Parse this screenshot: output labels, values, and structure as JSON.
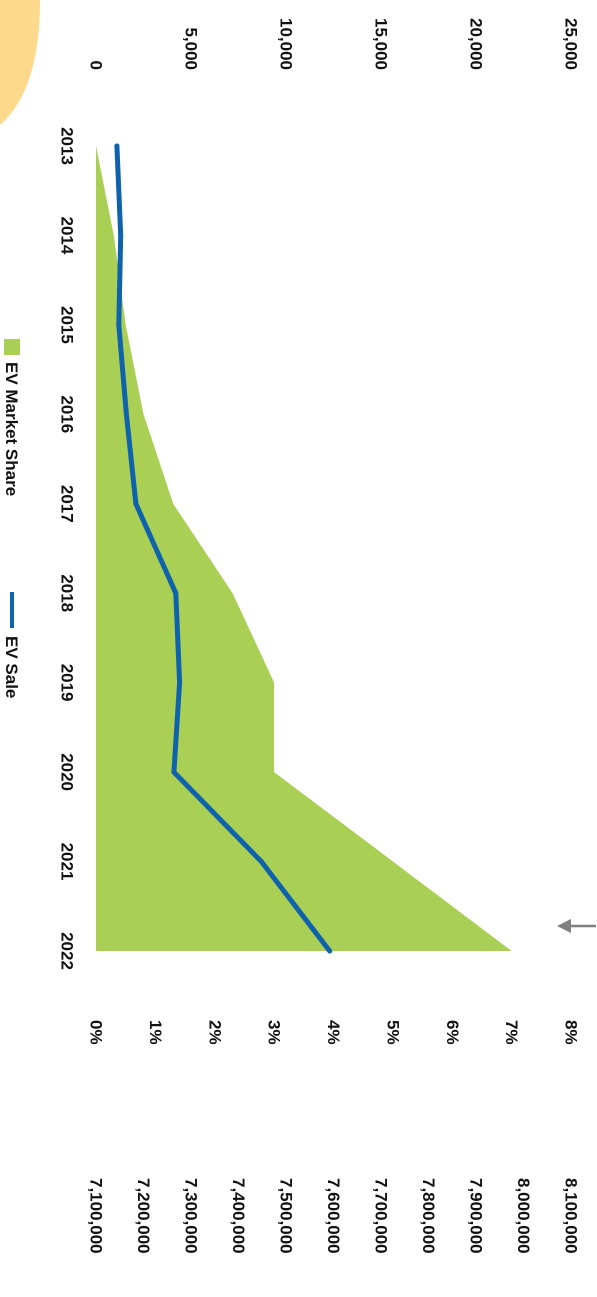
{
  "chart_data": {
    "type": "area+line",
    "categories": [
      "2013",
      "2014",
      "2015",
      "2016",
      "2017",
      "2018",
      "2019",
      "2020",
      "2021",
      "2022"
    ],
    "series": [
      {
        "name": "EV Market Share",
        "type": "area",
        "color": "#a9cf54",
        "axis": "percent",
        "values": [
          0.0,
          0.3,
          0.5,
          0.8,
          1.3,
          2.3,
          3.0,
          3.0,
          5.0,
          7.0
        ]
      },
      {
        "name": "EV Sale",
        "type": "line",
        "color": "#0f63ad",
        "axis": "count",
        "values": [
          1100,
          1300,
          1200,
          1600,
          2100,
          4200,
          4400,
          4100,
          8700,
          12300
        ]
      }
    ],
    "axes": {
      "count": {
        "ticks": [
          "0",
          "5,000",
          "10,000",
          "15,000",
          "20,000",
          "25,000"
        ],
        "range": [
          0,
          25000
        ]
      },
      "percent": {
        "ticks": [
          "0%",
          "1%",
          "2%",
          "3%",
          "4%",
          "5%",
          "6%",
          "7%",
          "8%"
        ],
        "range": [
          0,
          8
        ]
      },
      "third": {
        "ticks": [
          "7,100,000",
          "7,200,000",
          "7,300,000",
          "7,400,000",
          "7,500,000",
          "7,600,000",
          "7,700,000",
          "7,800,000",
          "7,900,000",
          "8,000,000",
          "8,100,000"
        ],
        "range": [
          7100000,
          8100000
        ]
      }
    },
    "legend": {
      "placement": "bottom",
      "items": [
        {
          "label": "EV Market Share",
          "symbol": "square",
          "color": "#a9cf54"
        },
        {
          "label": "EV Sale",
          "symbol": "line",
          "color": "#0f63ad"
        }
      ]
    },
    "orientation": "rotated-90-clockwise"
  },
  "decor": {
    "sun_color": "#fdd98c",
    "arrow_color": "#808080"
  }
}
